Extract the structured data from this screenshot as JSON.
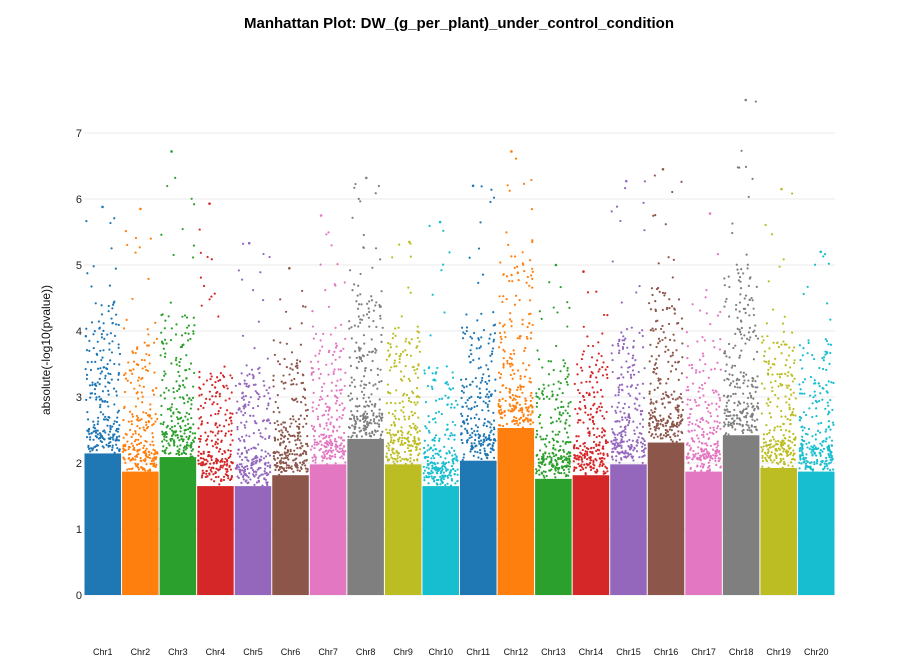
{
  "chart_data": {
    "type": "scatter",
    "title": "Manhattan Plot: DW_(g_per_plant)_under_control_condition",
    "xlabel": "",
    "ylabel": "absolute(-log10(pvalue))",
    "ylim": [
      0,
      7.7
    ],
    "yticks": [
      0,
      1,
      2,
      3,
      4,
      5,
      6,
      7
    ],
    "grid": true,
    "legend": "none",
    "palette": [
      "#1f77b4",
      "#ff7f0e",
      "#2ca02c",
      "#d62728",
      "#9467bd",
      "#8c564b",
      "#e377c2",
      "#7f7f7f",
      "#bcbd22",
      "#17becf"
    ],
    "chromosomes": [
      {
        "name": "Chr1",
        "max": 5.88,
        "body": 3.9
      },
      {
        "name": "Chr2",
        "max": 5.85,
        "body": 3.4
      },
      {
        "name": "Chr3",
        "max": 6.72,
        "body": 3.8
      },
      {
        "name": "Chr4",
        "max": 5.93,
        "body": 3.0
      },
      {
        "name": "Chr5",
        "max": 5.33,
        "body": 3.0
      },
      {
        "name": "Chr6",
        "max": 4.95,
        "body": 3.3
      },
      {
        "name": "Chr7",
        "max": 5.75,
        "body": 3.6
      },
      {
        "name": "Chr8",
        "max": 6.32,
        "body": 4.3
      },
      {
        "name": "Chr9",
        "max": 5.35,
        "body": 3.6
      },
      {
        "name": "Chr10",
        "max": 5.65,
        "body": 3.0
      },
      {
        "name": "Chr11",
        "max": 6.2,
        "body": 3.7
      },
      {
        "name": "Chr12",
        "max": 6.72,
        "body": 4.6
      },
      {
        "name": "Chr13",
        "max": 5.0,
        "body": 3.2
      },
      {
        "name": "Chr14",
        "max": 4.9,
        "body": 3.3
      },
      {
        "name": "Chr15",
        "max": 6.27,
        "body": 3.6
      },
      {
        "name": "Chr16",
        "max": 6.45,
        "body": 4.2
      },
      {
        "name": "Chr17",
        "max": 5.78,
        "body": 3.4
      },
      {
        "name": "Chr18",
        "max": 7.5,
        "body": 4.4
      },
      {
        "name": "Chr19",
        "max": 6.15,
        "body": 3.5
      },
      {
        "name": "Chr20",
        "max": 5.2,
        "body": 3.4
      }
    ]
  }
}
